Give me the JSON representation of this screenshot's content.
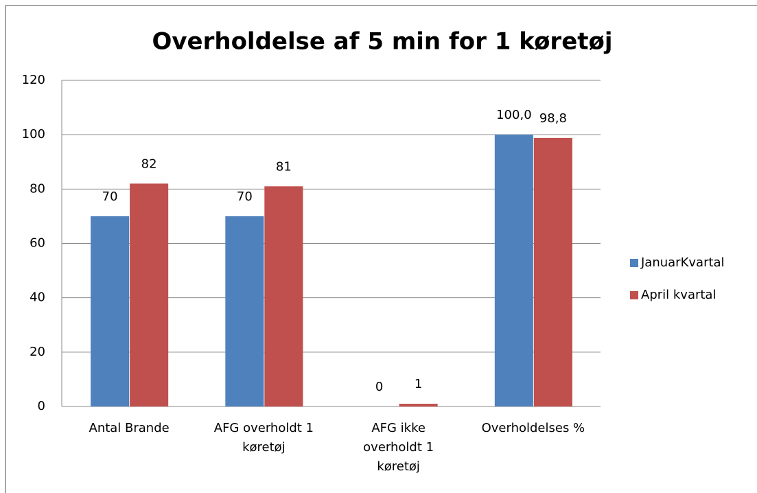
{
  "chart_data": {
    "type": "bar",
    "title": "Overholdelse af 5 min for 1 køretøj",
    "categories": [
      "Antal Brande",
      "AFG  overholdt 1 køretøj",
      "AFG ikke overholdt  1 køretøj",
      "Overholdelses %"
    ],
    "series": [
      {
        "name": "JanuarKvartal",
        "color": "#4f81bd",
        "values": [
          70,
          70,
          0,
          100
        ],
        "value_labels": [
          "70",
          "70",
          "0",
          "100,0"
        ]
      },
      {
        "name": "April kvartal",
        "color": "#c0504d",
        "values": [
          82,
          81,
          1,
          98.8
        ],
        "value_labels": [
          "82",
          "81",
          "1",
          "98,8"
        ]
      }
    ],
    "ylim": [
      0,
      120
    ],
    "yticks": [
      0,
      20,
      40,
      60,
      80,
      100,
      120
    ],
    "grid": true,
    "legend": "right"
  }
}
